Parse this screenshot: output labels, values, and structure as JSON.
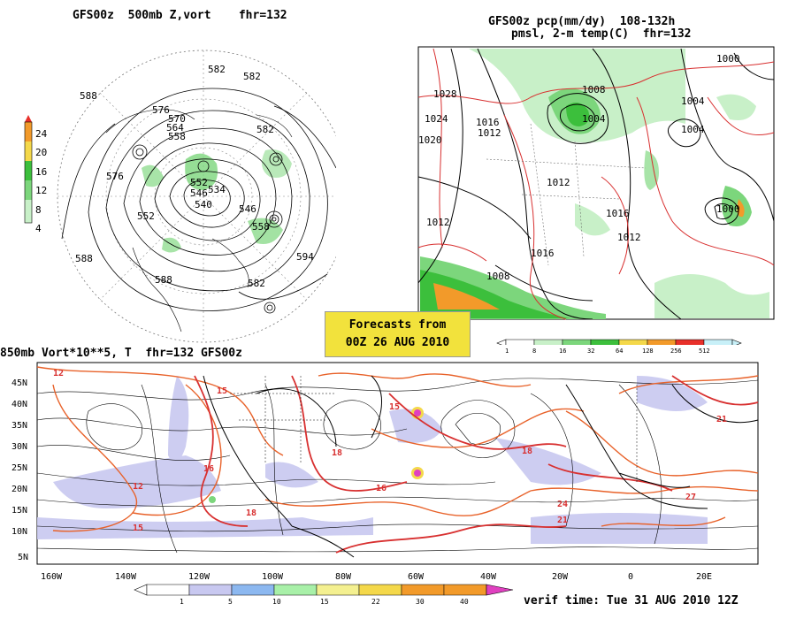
{
  "panels": {
    "top_left": {
      "title": "GFS00z  500mb Z,vort    fhr=132",
      "colorbar_ticks": [
        "24",
        "20",
        "16",
        "12",
        "8",
        "4"
      ],
      "contour_labels": [
        "582",
        "582",
        "576",
        "570",
        "564",
        "558",
        "552",
        "546",
        "540",
        "534",
        "576",
        "582",
        "588",
        "588",
        "594",
        "582",
        "588",
        "552",
        "546",
        "558"
      ]
    },
    "top_right": {
      "title_line1": "GFS00z pcp(mm/dy)  108-132h",
      "title_line2": "pmsl, 2-m temp(C)  fhr=132",
      "colorbar_ticks": [
        "1",
        "8",
        "16",
        "32",
        "64",
        "128",
        "256",
        "512"
      ],
      "contour_labels": [
        "1028",
        "1024",
        "1020",
        "1016",
        "1012",
        "1008",
        "1004",
        "1000",
        "1004",
        "1012",
        "1016",
        "1012",
        "1008",
        "1012",
        "1016",
        "1004",
        "1000"
      ]
    },
    "bottom": {
      "title": "850mb Vort*10**5, T  fhr=132 GFS00z",
      "lat_labels": [
        "45N",
        "40N",
        "35N",
        "30N",
        "25N",
        "20N",
        "15N",
        "10N",
        "5N"
      ],
      "lon_labels": [
        "160W",
        "140W",
        "120W",
        "100W",
        "80W",
        "60W",
        "40W",
        "20W",
        "0",
        "20E"
      ],
      "colorbar_ticks": [
        "1",
        "5",
        "10",
        "15",
        "22",
        "30",
        "40"
      ],
      "temp_labels": [
        "12",
        "15",
        "18",
        "21",
        "24",
        "27",
        "15",
        "18",
        "21",
        "12",
        "15",
        "18",
        "16",
        "16"
      ]
    }
  },
  "banner": {
    "line1": "Forecasts from",
    "line2": "00Z 26 AUG 2010"
  },
  "verif_time": "verif time: Tue 31 AUG 2010 12Z",
  "colors": {
    "banner_bg": "#f2e23c",
    "vort_light": "#c8c8f0",
    "temp_line": "#e8622a",
    "pcp_green": "#7cd67c",
    "isotherm_red": "#d83030"
  }
}
